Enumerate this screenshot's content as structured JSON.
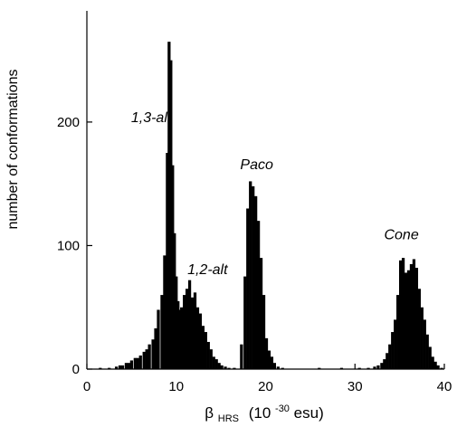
{
  "chart_data": {
    "type": "bar",
    "xlabel": {
      "symbol": "β",
      "subscript": "HRS",
      "prefix": "(10",
      "superscript": "-30",
      "suffix": "esu)"
    },
    "ylabel": "number of conformations",
    "xlim": [
      0,
      40
    ],
    "ylim": [
      0,
      290
    ],
    "x_ticks": [
      0,
      10,
      20,
      30,
      40
    ],
    "y_ticks": [
      0,
      100,
      200
    ],
    "grid": false,
    "bin_width": 0.33,
    "series": [
      {
        "x": [
          1.5,
          2.5,
          3.3,
          3.7,
          4.0,
          4.4,
          4.7,
          5.0,
          5.4,
          5.7,
          6.0,
          6.4,
          6.7,
          7.0,
          7.4,
          7.7,
          8.0,
          8.4,
          8.7,
          9.0,
          9.2,
          9.4,
          9.6,
          9.8,
          10.0,
          10.2,
          10.4,
          10.6,
          10.9,
          11.2,
          11.5,
          11.8,
          12.1,
          12.4,
          12.7,
          13.0,
          13.3,
          13.6,
          13.9,
          14.2,
          14.5,
          14.8,
          15.1,
          15.5,
          15.9,
          16.5,
          17.3,
          17.7,
          18.0,
          18.3,
          18.6,
          18.9,
          19.2,
          19.5,
          19.8,
          20.1,
          20.4,
          20.7,
          21.0,
          21.4,
          21.9,
          26.0,
          28.5,
          30.5,
          31.5,
          32.2,
          32.6,
          33.0,
          33.3,
          33.6,
          33.9,
          34.2,
          34.5,
          34.8,
          35.1,
          35.4,
          35.7,
          36.0,
          36.3,
          36.6,
          36.9,
          37.2,
          37.5,
          37.8,
          38.1,
          38.4,
          38.7,
          39.0,
          39.3,
          39.7
        ],
        "values": [
          1,
          1,
          2,
          3,
          3,
          5,
          5,
          7,
          9,
          9,
          11,
          14,
          16,
          20,
          24,
          33,
          48,
          60,
          92,
          175,
          265,
          250,
          165,
          110,
          75,
          55,
          48,
          50,
          60,
          65,
          72,
          58,
          62,
          50,
          45,
          35,
          30,
          22,
          16,
          10,
          8,
          5,
          3,
          2,
          1,
          1,
          20,
          75,
          130,
          152,
          148,
          140,
          120,
          90,
          60,
          25,
          15,
          10,
          5,
          2,
          1,
          1,
          1,
          1,
          1,
          2,
          3,
          5,
          8,
          13,
          20,
          30,
          40,
          60,
          88,
          90,
          78,
          80,
          85,
          89,
          82,
          65,
          50,
          40,
          28,
          18,
          10,
          6,
          3,
          1
        ],
        "color": "#000000"
      }
    ],
    "annotations": [
      {
        "text": "1,3-alt",
        "x": 7.2,
        "y": 200
      },
      {
        "text": "1,2-alt",
        "x": 13.5,
        "y": 77
      },
      {
        "text": "Paco",
        "x": 19.0,
        "y": 162
      },
      {
        "text": "Cone",
        "x": 35.2,
        "y": 105
      }
    ]
  }
}
